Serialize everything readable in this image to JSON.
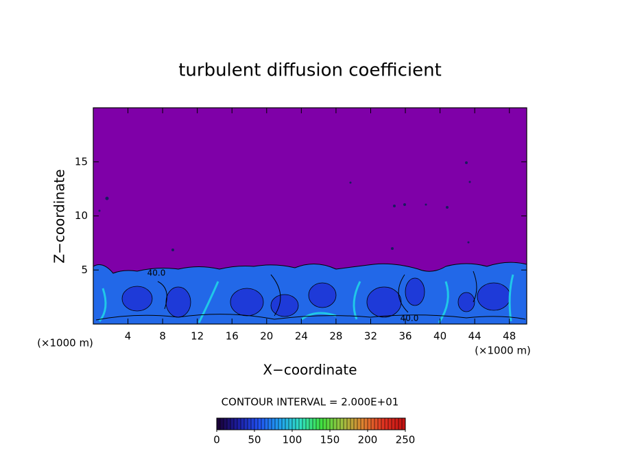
{
  "chart_data": {
    "type": "contour",
    "title": "turbulent diffusion coefficient",
    "x_label": "X−coordinate",
    "y_label": "Z−coordinate",
    "xlim": [
      0,
      50
    ],
    "xticks": [
      4,
      8,
      12,
      16,
      20,
      24,
      28,
      32,
      36,
      40,
      44,
      48
    ],
    "ylim": [
      0,
      20
    ],
    "yticks": [
      5,
      10,
      15
    ],
    "x_unit_labels": [
      "(×1000 m)",
      "(×1000 m)"
    ],
    "contour_labels": [
      "40.0",
      "40.0"
    ],
    "contour_interval_text": "CONTOUR INTERVAL = 2.000E+01",
    "background_color": "#7f00a8",
    "colorbar": {
      "lim": [
        0,
        250
      ],
      "ticks": [
        0,
        50,
        100,
        150,
        200,
        250
      ],
      "colormap": [
        "#1a0030",
        "#1c1ca0",
        "#2050f0",
        "#20a0f0",
        "#30e0c0",
        "#40e040",
        "#a0c040",
        "#e08030",
        "#e03020",
        "#c01010"
      ]
    }
  }
}
